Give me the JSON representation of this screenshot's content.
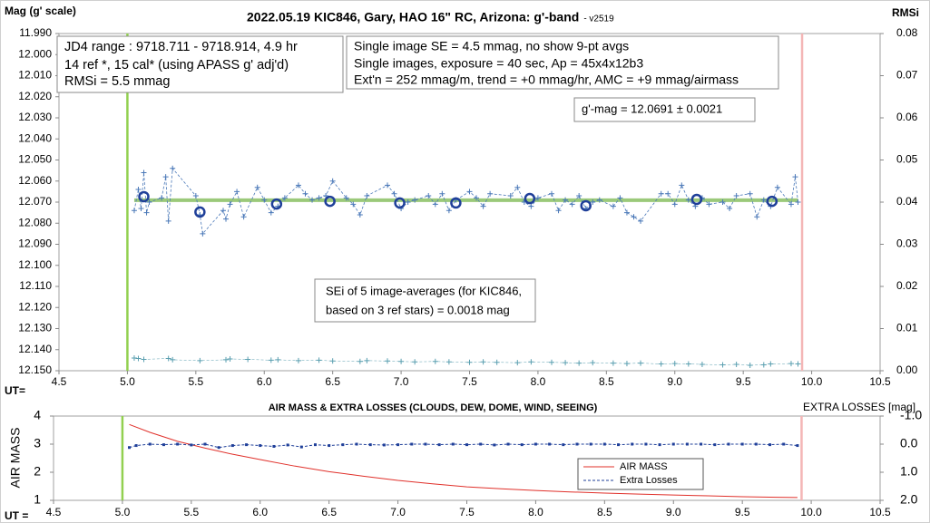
{
  "chart_data": [
    {
      "type": "line",
      "title": "2022.05.19 KIC846, Gary, HAO 16\" RC, Arizona: g'-band",
      "subtitle": "- v2519",
      "ylabel": "Mag (g' scale)",
      "y2label": "RMSi",
      "xlabel": "UT=",
      "xlim": [
        4.5,
        10.5
      ],
      "xticks": [
        {
          "value": 4.5,
          "label": "4.5"
        },
        {
          "value": 5,
          "label": "5.0"
        },
        {
          "value": 5.5,
          "label": "5.5"
        },
        {
          "value": 6,
          "label": "6.0"
        },
        {
          "value": 6.5,
          "label": "6.5"
        },
        {
          "value": 7,
          "label": "7.0"
        },
        {
          "value": 7.5,
          "label": "7.5"
        },
        {
          "value": 8,
          "label": "8.0"
        },
        {
          "value": 8.5,
          "label": "8.5"
        },
        {
          "value": 9,
          "label": "9.0"
        },
        {
          "value": 9.5,
          "label": "9.5"
        },
        {
          "value": 10,
          "label": "10.0"
        },
        {
          "value": 10.5,
          "label": "10.5"
        }
      ],
      "ylim": [
        12.15,
        11.99
      ],
      "yticks": [
        {
          "value": 11.99,
          "label": "11.990"
        },
        {
          "value": 12.0,
          "label": "12.000"
        },
        {
          "value": 12.01,
          "label": "12.010"
        },
        {
          "value": 12.02,
          "label": "12.020"
        },
        {
          "value": 12.03,
          "label": "12.030"
        },
        {
          "value": 12.04,
          "label": "12.040"
        },
        {
          "value": 12.05,
          "label": "12.050"
        },
        {
          "value": 12.06,
          "label": "12.060"
        },
        {
          "value": 12.07,
          "label": "12.070"
        },
        {
          "value": 12.08,
          "label": "12.080"
        },
        {
          "value": 12.09,
          "label": "12.090"
        },
        {
          "value": 12.1,
          "label": "12.100"
        },
        {
          "value": 12.11,
          "label": "12.110"
        },
        {
          "value": 12.12,
          "label": "12.120"
        },
        {
          "value": 12.13,
          "label": "12.130"
        },
        {
          "value": 12.14,
          "label": "12.140"
        },
        {
          "value": 12.15,
          "label": "12.150"
        }
      ],
      "y2lim": [
        0,
        0.08
      ],
      "y2ticks": [
        {
          "value": 0,
          "label": "0.00"
        },
        {
          "value": 0.01,
          "label": "0.01"
        },
        {
          "value": 0.02,
          "label": "0.02"
        },
        {
          "value": 0.03,
          "label": "0.03"
        },
        {
          "value": 0.04,
          "label": "0.04"
        },
        {
          "value": 0.05,
          "label": "0.05"
        },
        {
          "value": 0.06,
          "label": "0.06"
        },
        {
          "value": 0.07,
          "label": "0.07"
        },
        {
          "value": 0.08,
          "label": "0.08"
        }
      ],
      "vlines": [
        {
          "x": 5.0,
          "color": "#92d050"
        },
        {
          "x": 9.93,
          "color": "#f4b6b6"
        }
      ],
      "series": [
        {
          "color": "#9bc97a",
          "marker": "none",
          "dash": false,
          "width": 4,
          "x": [
            5.05,
            9.9
          ],
          "values": [
            12.0691,
            12.0691
          ]
        },
        {
          "color": "#4a78b8",
          "marker": "plus",
          "dash": true,
          "width": 0.8,
          "x": [
            5.05,
            5.08,
            5.1,
            5.12,
            5.14,
            5.16,
            5.25,
            5.28,
            5.3,
            5.33,
            5.5,
            5.53,
            5.55,
            5.7,
            5.72,
            5.75,
            5.8,
            5.85,
            5.95,
            6.0,
            6.05,
            6.1,
            6.15,
            6.25,
            6.3,
            6.35,
            6.4,
            6.45,
            6.5,
            6.6,
            6.65,
            6.7,
            6.75,
            6.9,
            6.95,
            7.0,
            7.05,
            7.1,
            7.2,
            7.25,
            7.3,
            7.35,
            7.4,
            7.5,
            7.55,
            7.6,
            7.65,
            7.8,
            7.85,
            7.9,
            7.95,
            8.0,
            8.1,
            8.15,
            8.2,
            8.25,
            8.3,
            8.35,
            8.4,
            8.45,
            8.55,
            8.6,
            8.65,
            8.7,
            8.75,
            8.9,
            8.95,
            9.0,
            9.05,
            9.1,
            9.15,
            9.2,
            9.25,
            9.35,
            9.4,
            9.45,
            9.55,
            9.6,
            9.65,
            9.7,
            9.75,
            9.85,
            9.88,
            9.9
          ],
          "values": [
            12.074,
            12.064,
            12.073,
            12.056,
            12.075,
            12.07,
            12.068,
            12.058,
            12.079,
            12.054,
            12.067,
            12.076,
            12.085,
            12.074,
            12.078,
            12.071,
            12.065,
            12.077,
            12.063,
            12.069,
            12.075,
            12.072,
            12.068,
            12.062,
            12.066,
            12.069,
            12.068,
            12.067,
            12.06,
            12.068,
            12.071,
            12.076,
            12.067,
            12.062,
            12.066,
            12.073,
            12.07,
            12.069,
            12.067,
            12.071,
            12.066,
            12.074,
            12.069,
            12.065,
            12.068,
            12.072,
            12.066,
            12.067,
            12.063,
            12.07,
            12.072,
            12.068,
            12.066,
            12.074,
            12.069,
            12.071,
            12.067,
            12.073,
            12.07,
            12.069,
            12.072,
            12.068,
            12.075,
            12.077,
            12.079,
            12.066,
            12.066,
            12.071,
            12.062,
            12.069,
            12.072,
            12.068,
            12.071,
            12.07,
            12.073,
            12.067,
            12.066,
            12.077,
            12.069,
            12.072,
            12.063,
            12.071,
            12.058,
            12.07
          ]
        },
        {
          "color": "#1f3f99",
          "marker": "circle",
          "dash": false,
          "width": 0,
          "x": [
            5.12,
            5.53,
            6.09,
            6.48,
            6.99,
            7.4,
            7.94,
            8.35,
            9.16,
            9.71
          ],
          "values": [
            12.0674,
            12.0747,
            12.0709,
            12.0696,
            12.0704,
            12.0704,
            12.0683,
            12.0717,
            12.0687,
            12.0696
          ]
        },
        {
          "color": "#5a9fb0",
          "marker": "plus",
          "dash": true,
          "width": 0.5,
          "axis": "y2",
          "x": [
            5.05,
            5.08,
            5.12,
            5.3,
            5.33,
            5.53,
            5.72,
            5.75,
            5.88,
            6.05,
            6.1,
            6.25,
            6.4,
            6.5,
            6.7,
            6.75,
            6.9,
            7.0,
            7.1,
            7.25,
            7.35,
            7.5,
            7.6,
            7.7,
            7.85,
            7.95,
            8.1,
            8.2,
            8.3,
            8.4,
            8.55,
            8.65,
            8.75,
            8.9,
            9.0,
            9.1,
            9.2,
            9.35,
            9.45,
            9.55,
            9.65,
            9.7,
            9.85,
            9.9
          ],
          "values": [
            0.003,
            0.0029,
            0.0027,
            0.0029,
            0.0026,
            0.0024,
            0.0026,
            0.0028,
            0.0027,
            0.0025,
            0.0026,
            0.0024,
            0.0025,
            0.0023,
            0.0022,
            0.0024,
            0.0023,
            0.0022,
            0.0021,
            0.0022,
            0.0021,
            0.002,
            0.0021,
            0.002,
            0.0019,
            0.0021,
            0.002,
            0.0019,
            0.0018,
            0.0019,
            0.0018,
            0.0017,
            0.0018,
            0.0016,
            0.0017,
            0.0016,
            0.0015,
            0.0014,
            0.0015,
            0.0013,
            0.0014,
            0.0016,
            0.0017,
            0.0016
          ]
        }
      ],
      "annotations": [
        {
          "lines": [
            "JD4 range : 9718.711 - 9718.914,  4.9  hr",
            "14 ref *, 15 cal* (using APASS g' adj'd)",
            "RMSi = 5.5 mmag"
          ]
        },
        {
          "lines": [
            "Single image SE = 4.5 mmag, no show  9-pt avgs",
            "Single images, exposure = 40 sec, Ap = 45x4x12b3",
            "Ext'n = 252 mmag/m, trend = +0 mmag/hr, AMC = +9 mmag/airmass"
          ]
        },
        {
          "lines": [
            "g'-mag = 12.0691 ± 0.0021"
          ]
        },
        {
          "lines": [
            "SEi of 5 image-averages (for KIC846,",
            "based on 3 ref stars) = 0.0018 mag"
          ]
        }
      ]
    },
    {
      "type": "line",
      "title": "AIR MASS & EXTRA LOSSES (CLOUDS, DEW, DOME, WIND, SEEING)",
      "ylabel": "AIR MASS",
      "y2label": "EXTRA LOSSES [mag]",
      "xlabel": "UT =",
      "xlim": [
        4.5,
        10.5
      ],
      "xticks": [
        {
          "value": 4.5,
          "label": "4.5"
        },
        {
          "value": 5,
          "label": "5.0"
        },
        {
          "value": 5.5,
          "label": "5.5"
        },
        {
          "value": 6,
          "label": "6.0"
        },
        {
          "value": 6.5,
          "label": "6.5"
        },
        {
          "value": 7,
          "label": "7.0"
        },
        {
          "value": 7.5,
          "label": "7.5"
        },
        {
          "value": 8,
          "label": "8.0"
        },
        {
          "value": 8.5,
          "label": "8.5"
        },
        {
          "value": 9,
          "label": "9.0"
        },
        {
          "value": 9.5,
          "label": "9.5"
        },
        {
          "value": 10,
          "label": "10.0"
        },
        {
          "value": 10.5,
          "label": "10.5"
        }
      ],
      "ylim": [
        1,
        4
      ],
      "yticks": [
        1,
        2,
        3,
        4
      ],
      "y2lim": [
        2,
        -1
      ],
      "y2ticks": [
        {
          "value": -1,
          "label": "-1.0"
        },
        {
          "value": 0,
          "label": "0.0"
        },
        {
          "value": 1,
          "label": "1.0"
        },
        {
          "value": 2,
          "label": "2.0"
        }
      ],
      "vlines": [
        {
          "x": 5.0,
          "color": "#92d050"
        },
        {
          "x": 9.93,
          "color": "#f4b6b6"
        }
      ],
      "legend": "lower right",
      "series": [
        {
          "name": "AIR MASS",
          "color": "#e0302a",
          "marker": "none",
          "dash": false,
          "width": 1,
          "x": [
            5.05,
            5.2,
            5.4,
            5.5,
            5.6,
            5.8,
            6.0,
            6.25,
            6.5,
            6.75,
            7.0,
            7.25,
            7.5,
            7.75,
            8.0,
            8.25,
            8.5,
            8.75,
            9.0,
            9.25,
            9.5,
            9.75,
            9.9
          ],
          "values": [
            3.7,
            3.42,
            3.1,
            2.98,
            2.86,
            2.64,
            2.45,
            2.22,
            2.02,
            1.86,
            1.71,
            1.59,
            1.48,
            1.41,
            1.35,
            1.3,
            1.26,
            1.22,
            1.19,
            1.16,
            1.13,
            1.11,
            1.1
          ]
        },
        {
          "name": "Extra Losses",
          "color": "#1f3f99",
          "marker": "dot",
          "dash": true,
          "width": 1,
          "axis": "y2",
          "x": [
            5.05,
            5.1,
            5.2,
            5.3,
            5.4,
            5.5,
            5.6,
            5.7,
            5.8,
            5.9,
            6.0,
            6.1,
            6.2,
            6.3,
            6.4,
            6.5,
            6.6,
            6.7,
            6.8,
            6.9,
            7.0,
            7.1,
            7.2,
            7.3,
            7.4,
            7.5,
            7.6,
            7.7,
            7.8,
            7.9,
            8.0,
            8.1,
            8.2,
            8.3,
            8.4,
            8.5,
            8.6,
            8.7,
            8.8,
            8.9,
            9.0,
            9.1,
            9.2,
            9.3,
            9.4,
            9.5,
            9.6,
            9.7,
            9.8,
            9.9
          ],
          "values": [
            0.12,
            0.05,
            0.0,
            0.02,
            0.0,
            0.03,
            0.0,
            0.12,
            0.05,
            0.02,
            0.05,
            0.08,
            0.03,
            0.1,
            0.02,
            0.05,
            0.02,
            0.0,
            0.02,
            0.03,
            0.02,
            0.0,
            0.0,
            0.02,
            0.0,
            0.02,
            0.0,
            0.03,
            0.0,
            0.02,
            0.0,
            0.0,
            0.02,
            0.0,
            0.0,
            0.0,
            0.02,
            0.0,
            0.0,
            0.02,
            0.0,
            0.0,
            0.0,
            0.02,
            0.0,
            0.0,
            0.0,
            0.02,
            0.0,
            0.05
          ]
        }
      ]
    }
  ]
}
